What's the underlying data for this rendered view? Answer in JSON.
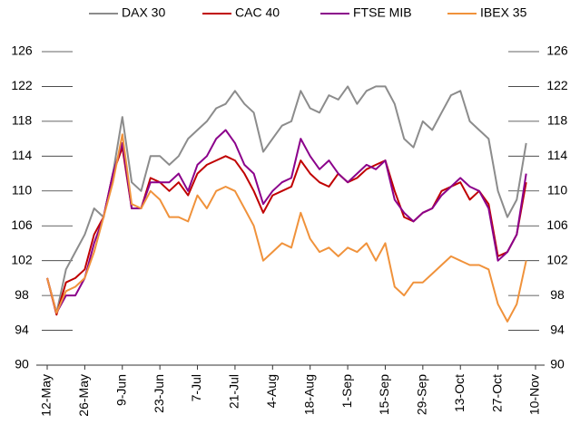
{
  "chart_data": {
    "type": "line",
    "categories": [
      "12-May",
      null,
      null,
      null,
      "26-May",
      null,
      null,
      null,
      "9-Jun",
      null,
      null,
      null,
      "23-Jun",
      null,
      null,
      null,
      "7-Jul",
      null,
      null,
      null,
      "21-Jul",
      null,
      null,
      null,
      "4-Aug",
      null,
      null,
      null,
      "18-Aug",
      null,
      null,
      null,
      "1-Sep",
      null,
      null,
      null,
      "15-Sep",
      null,
      null,
      null,
      "29-Sep",
      null,
      null,
      null,
      "13-Oct",
      null,
      null,
      null,
      "27-Oct",
      null,
      null,
      null,
      "10-Nov"
    ],
    "series": [
      {
        "name": "DAX 30",
        "color": "#8c8c8c",
        "values": [
          100,
          96,
          101,
          103,
          105,
          108,
          107,
          112,
          118.5,
          111,
          110,
          114,
          114,
          113,
          114,
          116,
          117,
          118,
          119.5,
          120,
          121.5,
          120,
          119,
          114.5,
          116,
          117.5,
          118,
          121.5,
          119.5,
          119,
          121,
          120.5,
          122,
          120,
          121.5,
          122,
          122,
          120,
          116,
          115,
          118,
          117,
          119,
          121,
          121.5,
          118,
          117,
          116,
          110,
          107,
          109,
          115.5,
          null
        ]
      },
      {
        "name": "CAC 40",
        "color": "#c00000",
        "values": [
          100,
          95.8,
          99.5,
          100,
          101,
          105,
          107,
          112,
          115,
          108,
          108,
          111.5,
          111,
          110,
          111,
          109.5,
          112,
          113,
          113.5,
          114,
          113.5,
          112,
          110,
          107.5,
          109.5,
          110,
          110.5,
          113.5,
          112,
          111,
          110.5,
          112,
          111,
          111.5,
          112.5,
          113,
          113.5,
          110,
          107,
          106.5,
          107.5,
          108,
          110,
          110.5,
          111,
          109,
          110,
          108.5,
          102.5,
          103,
          105,
          111,
          null
        ]
      },
      {
        "name": "FTSE MIB",
        "color": "#8b008b",
        "values": [
          100,
          96,
          98,
          98,
          100,
          104,
          107,
          112,
          115.5,
          108,
          108,
          111,
          111,
          111,
          112,
          110,
          113,
          114,
          116,
          117,
          115.5,
          113,
          112,
          108.5,
          110,
          111,
          111.5,
          116,
          114,
          112.5,
          113.5,
          112,
          111,
          112,
          113,
          112.5,
          113.5,
          109,
          107.5,
          106.5,
          107.5,
          108,
          109.5,
          110.5,
          111.5,
          110.5,
          110,
          108,
          102,
          103,
          105,
          112,
          null
        ]
      },
      {
        "name": "IBEX 35",
        "color": "#f0923b",
        "values": [
          100,
          96,
          98.5,
          99,
          100,
          103,
          107,
          111,
          116.5,
          108.5,
          108,
          110,
          109,
          107,
          107,
          106.5,
          109.5,
          108,
          110,
          110.5,
          110,
          108,
          106,
          102,
          103,
          104,
          103.5,
          107.5,
          104.5,
          103,
          103.5,
          102.5,
          103.5,
          103,
          104,
          102,
          104,
          99,
          98,
          99.5,
          99.5,
          100.5,
          101.5,
          102.5,
          102,
          101.5,
          101.5,
          101,
          97,
          95,
          97,
          102,
          null
        ]
      }
    ],
    "ylim": [
      90,
      126
    ],
    "yticks": [
      90,
      94,
      98,
      102,
      106,
      110,
      114,
      118,
      122,
      126
    ],
    "y2lim": [
      90,
      126
    ],
    "y2ticks": [
      90,
      94,
      98,
      102,
      106,
      110,
      114,
      118,
      122,
      126
    ],
    "legend": "top"
  }
}
